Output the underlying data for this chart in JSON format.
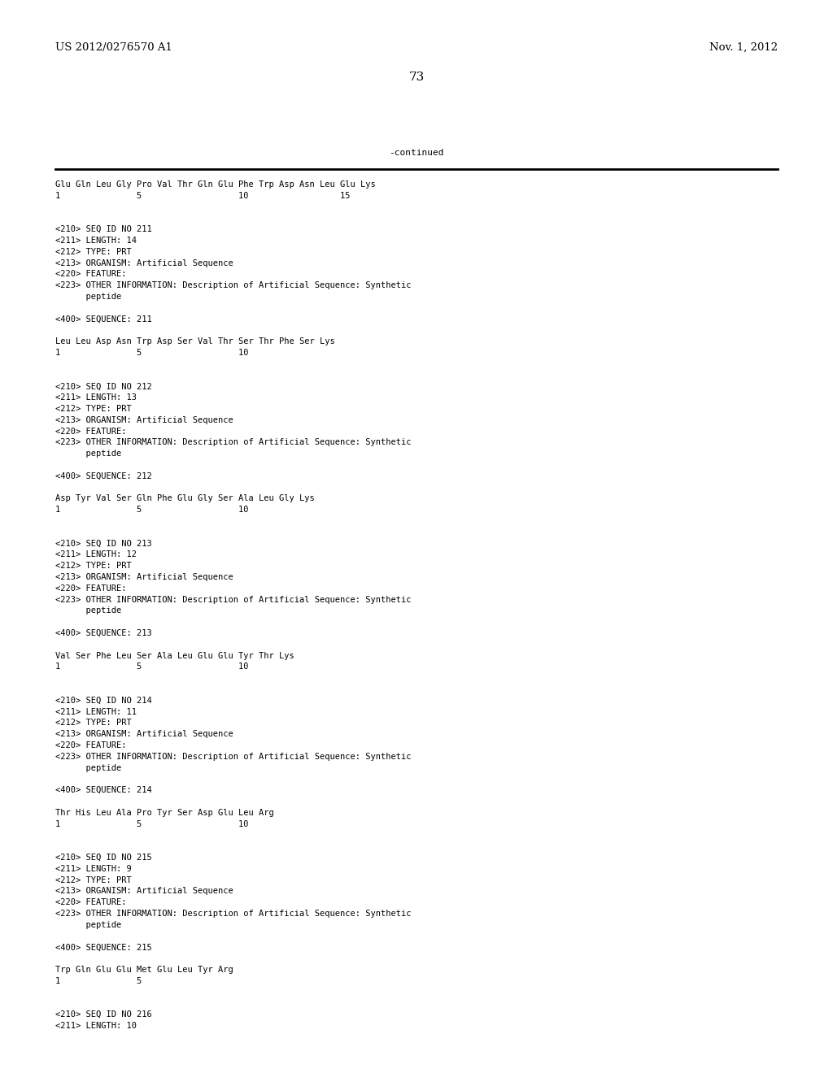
{
  "header_left": "US 2012/0276570 A1",
  "header_right": "Nov. 1, 2012",
  "page_number": "73",
  "continued_label": "-continued",
  "background_color": "#ffffff",
  "text_color": "#000000",
  "font_size": 7.5,
  "mono_font": "DejaVu Sans Mono",
  "serif_font": "DejaVu Serif",
  "header_font_size": 9.5,
  "page_num_font_size": 11,
  "content_lines": [
    "Glu Gln Leu Gly Pro Val Thr Gln Glu Phe Trp Asp Asn Leu Glu Lys",
    "1               5                   10                  15",
    "",
    "",
    "<210> SEQ ID NO 211",
    "<211> LENGTH: 14",
    "<212> TYPE: PRT",
    "<213> ORGANISM: Artificial Sequence",
    "<220> FEATURE:",
    "<223> OTHER INFORMATION: Description of Artificial Sequence: Synthetic",
    "      peptide",
    "",
    "<400> SEQUENCE: 211",
    "",
    "Leu Leu Asp Asn Trp Asp Ser Val Thr Ser Thr Phe Ser Lys",
    "1               5                   10",
    "",
    "",
    "<210> SEQ ID NO 212",
    "<211> LENGTH: 13",
    "<212> TYPE: PRT",
    "<213> ORGANISM: Artificial Sequence",
    "<220> FEATURE:",
    "<223> OTHER INFORMATION: Description of Artificial Sequence: Synthetic",
    "      peptide",
    "",
    "<400> SEQUENCE: 212",
    "",
    "Asp Tyr Val Ser Gln Phe Glu Gly Ser Ala Leu Gly Lys",
    "1               5                   10",
    "",
    "",
    "<210> SEQ ID NO 213",
    "<211> LENGTH: 12",
    "<212> TYPE: PRT",
    "<213> ORGANISM: Artificial Sequence",
    "<220> FEATURE:",
    "<223> OTHER INFORMATION: Description of Artificial Sequence: Synthetic",
    "      peptide",
    "",
    "<400> SEQUENCE: 213",
    "",
    "Val Ser Phe Leu Ser Ala Leu Glu Glu Tyr Thr Lys",
    "1               5                   10",
    "",
    "",
    "<210> SEQ ID NO 214",
    "<211> LENGTH: 11",
    "<212> TYPE: PRT",
    "<213> ORGANISM: Artificial Sequence",
    "<220> FEATURE:",
    "<223> OTHER INFORMATION: Description of Artificial Sequence: Synthetic",
    "      peptide",
    "",
    "<400> SEQUENCE: 214",
    "",
    "Thr His Leu Ala Pro Tyr Ser Asp Glu Leu Arg",
    "1               5                   10",
    "",
    "",
    "<210> SEQ ID NO 215",
    "<211> LENGTH: 9",
    "<212> TYPE: PRT",
    "<213> ORGANISM: Artificial Sequence",
    "<220> FEATURE:",
    "<223> OTHER INFORMATION: Description of Artificial Sequence: Synthetic",
    "      peptide",
    "",
    "<400> SEQUENCE: 215",
    "",
    "Trp Gln Glu Glu Met Glu Leu Tyr Arg",
    "1               5",
    "",
    "",
    "<210> SEQ ID NO 216",
    "<211> LENGTH: 10"
  ]
}
